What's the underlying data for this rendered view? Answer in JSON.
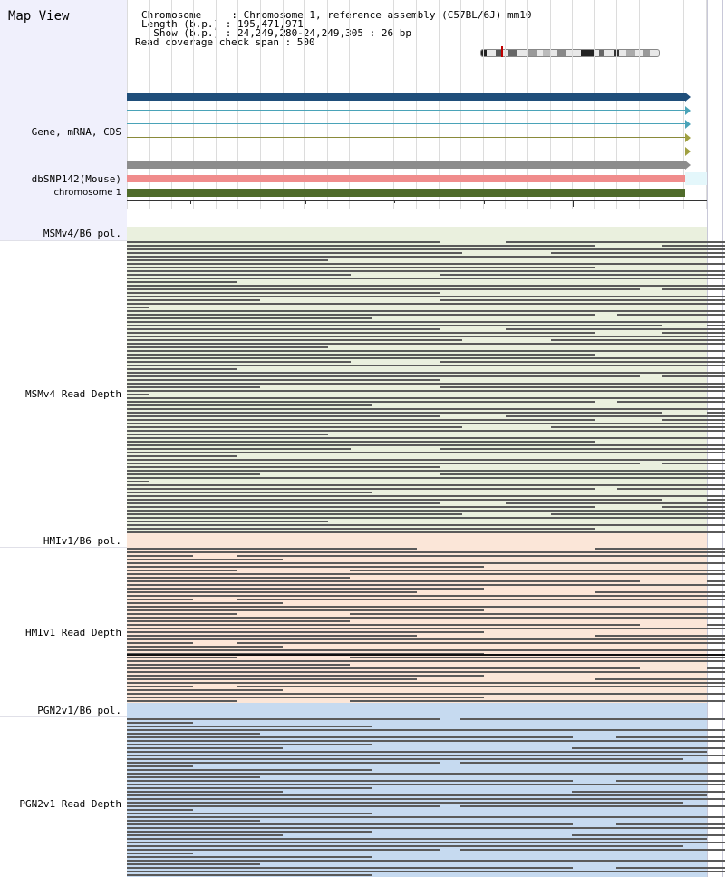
{
  "window": {
    "title": "Map View"
  },
  "header": {
    "chromosome_line": "Chromosome     : Chromosome 1, reference assembly (C57BL/6J) mm10",
    "length_line": "Length (b.p.) : 195,471,971",
    "show_line": "  Show (b.p.) : 24,249,280-24,249,305 : 26 bp",
    "coverage_line": "Read coverage check span : 500"
  },
  "tracks": {
    "gene_label": "Gene, mRNA, CDS",
    "snp_label": "dbSNP142(Mouse)",
    "chrom_label": "chromosome 1",
    "msm_pol_label": "MSMv4/B6 pol.",
    "msm_depth_label": "MSMv4 Read Depth",
    "hmi_pol_label": "HMIv1/B6 pol.",
    "hmi_depth_label": "HMIv1 Read Depth",
    "pgn_pol_label": "PGN2v1/B6 pol.",
    "pgn_depth_label": "PGN2v1 Read Depth"
  },
  "colors": {
    "gene_main": "#1f4e7a",
    "mrna": "#4aa3b8",
    "cds": "#8a8a3a",
    "gene_grey": "#8c8c8c",
    "snp": "#f08c8c",
    "chromosome": "#4f6b2a",
    "msm_band": "#eaf0de",
    "hmi_band": "#fbe6d8",
    "pgn_band": "#c6daf0",
    "read": "#5a5a5a",
    "left_panel": "#f0f0fc"
  }
}
